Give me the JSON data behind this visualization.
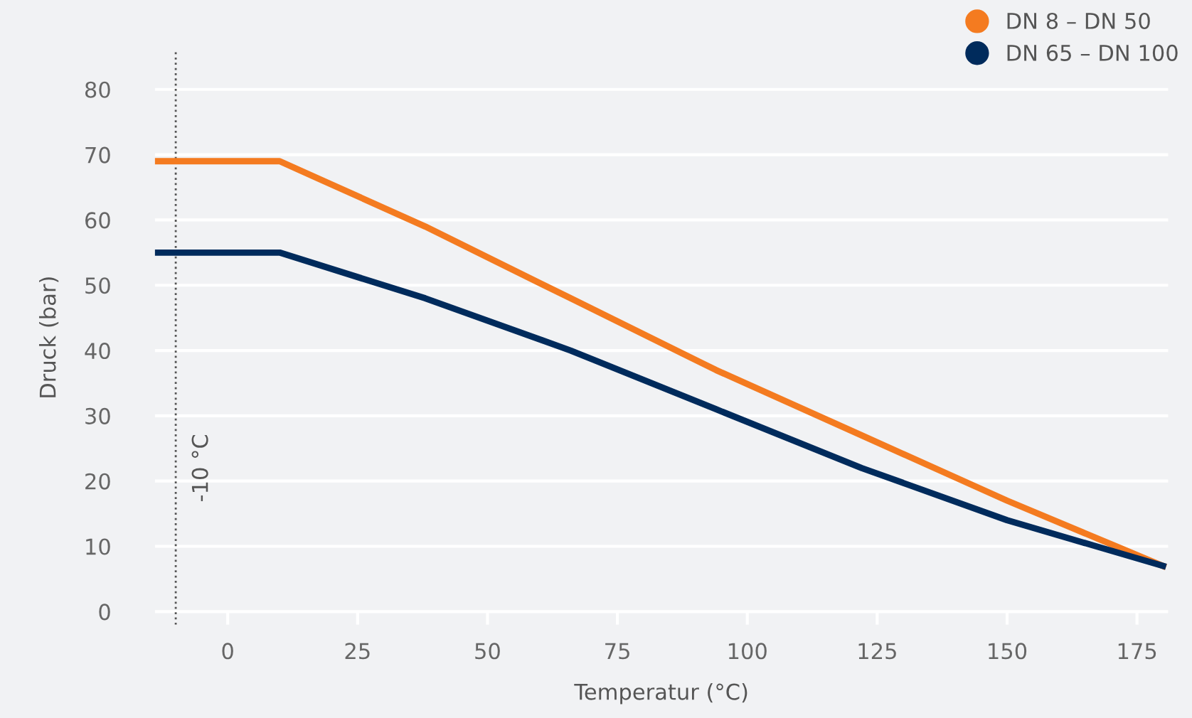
{
  "chart_data": {
    "type": "line",
    "xlabel": "Temperatur (°C)",
    "ylabel": "Druck (bar)",
    "series": [
      {
        "name": "DN 8 – DN 50",
        "color": "#f47b20",
        "x": [
          -14,
          10,
          38,
          66,
          94,
          122,
          150,
          180
        ],
        "values": [
          69,
          69,
          59,
          48,
          37,
          27,
          17,
          7
        ]
      },
      {
        "name": "DN 65 – DN 100",
        "color": "#002b5c",
        "x": [
          -14,
          10,
          38,
          66,
          94,
          122,
          150,
          180
        ],
        "values": [
          55,
          55,
          48,
          40,
          31,
          22,
          14,
          7
        ]
      }
    ],
    "xlim": [
      -14,
      181
    ],
    "xticks": [
      0,
      25,
      50,
      75,
      100,
      125,
      150,
      175
    ],
    "ylim": [
      -2,
      86
    ],
    "yticks": [
      0,
      10,
      20,
      30,
      40,
      50,
      60,
      70,
      80
    ],
    "ref_lines": [
      {
        "axis": "x",
        "value": -10,
        "label": "-10 °C",
        "color": "#555555",
        "line_style": "dotted"
      }
    ],
    "grid": "y",
    "legend": "top right",
    "marker": "none",
    "line_style": "solid"
  }
}
